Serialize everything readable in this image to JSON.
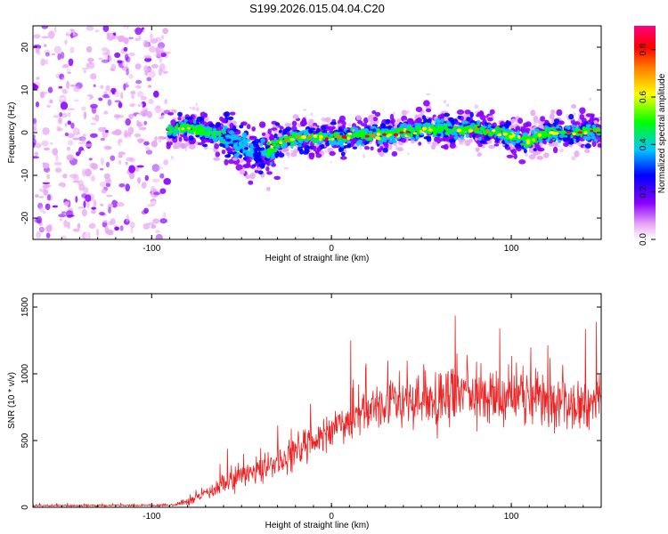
{
  "title": "S199.2026.015.04.04.C20",
  "spectrogram": {
    "type": "heatmap",
    "xlabel": "Height of straight line (km)",
    "ylabel": "Frequency (Hz)",
    "xlim": [
      -166,
      150
    ],
    "ylim": [
      -25,
      25
    ],
    "xticks": [
      -100,
      0,
      100
    ],
    "xtick_labels": [
      "-100",
      "0",
      "100"
    ],
    "yticks": [
      -20,
      -10,
      0,
      10,
      20
    ],
    "ytick_labels": [
      "-20",
      "-10",
      "0",
      "10",
      "20"
    ],
    "noise_region_end": -91,
    "ridge": {
      "x": [
        -91,
        -80,
        -70,
        -60,
        -50,
        -40,
        -35,
        -30,
        -25,
        -20,
        -10,
        0,
        10,
        20,
        30,
        40,
        50,
        60,
        70,
        80,
        90,
        100,
        110,
        120,
        130,
        140,
        150
      ],
      "freq": [
        0.5,
        1.0,
        0.3,
        -1.0,
        -3.0,
        -5.5,
        -4.0,
        -2.5,
        -1.8,
        -1.2,
        -1.0,
        -1.2,
        -0.8,
        -0.5,
        -0.5,
        0.2,
        0.8,
        0.8,
        0.6,
        1.0,
        0.2,
        -0.8,
        -1.8,
        0.0,
        -0.3,
        0.3,
        0.5
      ],
      "peak_amplitude": [
        0.55,
        0.7,
        0.65,
        0.5,
        0.45,
        0.35,
        0.55,
        0.85,
        0.8,
        0.9,
        0.9,
        0.85,
        0.85,
        0.85,
        0.9,
        0.85,
        0.75,
        0.7,
        0.7,
        0.8,
        0.75,
        0.7,
        0.75,
        0.85,
        0.85,
        0.9,
        0.8
      ]
    },
    "colorbar": {
      "label": "Normalized spectral amplitude",
      "range": [
        0,
        0.9
      ],
      "ticks": [
        0.0,
        0.2,
        0.4,
        0.6,
        0.8
      ],
      "tick_labels": [
        "0.0",
        "0.2",
        "0.4",
        "0.6",
        "0.8"
      ],
      "colors": [
        "#ffffff",
        "#e9a8f5",
        "#8a00ff",
        "#0000ff",
        "#00c8ff",
        "#00ff00",
        "#ffff00",
        "#ff8000",
        "#ff0000",
        "#ff0080"
      ]
    }
  },
  "snr": {
    "type": "line",
    "xlabel": "Height of straight line (km)",
    "ylabel": "SNR (10 * v/v)",
    "xlim": [
      -166,
      150
    ],
    "ylim": [
      0,
      1600
    ],
    "xticks": [
      -100,
      0,
      100
    ],
    "xtick_labels": [
      "-100",
      "0",
      "100"
    ],
    "yticks": [
      0,
      500,
      1000,
      1500
    ],
    "ytick_labels": [
      "0",
      "500",
      "1000",
      "1500"
    ],
    "color": "#ee2222",
    "trend": {
      "x": [
        -166,
        -90,
        -80,
        -70,
        -60,
        -50,
        -40,
        -30,
        -20,
        -10,
        0,
        10,
        20,
        30,
        40,
        50,
        60,
        70,
        80,
        90,
        100,
        110,
        120,
        130,
        140,
        150
      ],
      "y": [
        12,
        15,
        40,
        110,
        170,
        230,
        280,
        330,
        400,
        480,
        580,
        660,
        720,
        780,
        800,
        810,
        820,
        830,
        830,
        820,
        810,
        800,
        800,
        790,
        790,
        800
      ]
    },
    "spread": {
      "x": [
        -166,
        -90,
        -80,
        -60,
        -40,
        -20,
        0,
        20,
        40,
        60,
        80,
        100,
        120,
        150
      ],
      "y": [
        8,
        10,
        40,
        90,
        130,
        160,
        190,
        220,
        260,
        300,
        300,
        280,
        260,
        260
      ]
    }
  }
}
